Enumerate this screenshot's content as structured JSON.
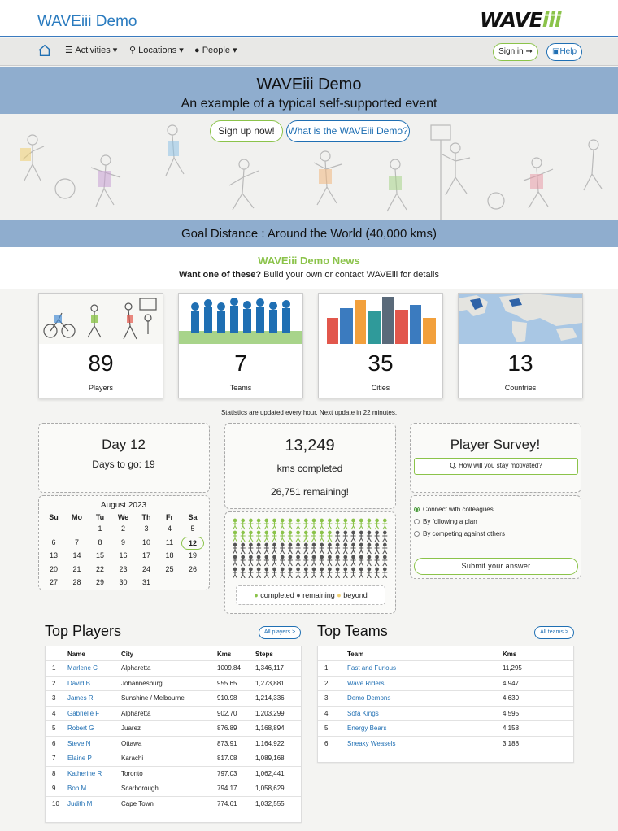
{
  "header": {
    "title": "WAVEiii Demo",
    "logo_main": "WAVE",
    "logo_accent": "iii"
  },
  "nav": {
    "home_icon": "home-icon",
    "items": [
      {
        "label": "Activities",
        "icon": "list-icon"
      },
      {
        "label": "Locations",
        "icon": "map-pin-icon"
      },
      {
        "label": "People",
        "icon": "person-icon"
      }
    ],
    "signin_label": "Sign in",
    "help_label": "Help"
  },
  "hero": {
    "title": "WAVEiii Demo",
    "subtitle": "An example of a typical self-supported event",
    "signup_label": "Sign up now!",
    "what_label": "What is the WAVEiii Demo?",
    "goal": "Goal Distance : Around the World (40,000 kms)"
  },
  "news": {
    "title": "WAVEiii Demo News",
    "bold": "Want one of these?",
    "text": " Build your own or contact WAVEiii for details"
  },
  "stats": [
    {
      "value": "89",
      "label": "Players"
    },
    {
      "value": "7",
      "label": "Teams"
    },
    {
      "value": "35",
      "label": "Cities"
    },
    {
      "value": "13",
      "label": "Countries"
    }
  ],
  "update_note": "Statistics are updated every hour. Next update in 22 minutes.",
  "day": {
    "title": "Day 12",
    "days_to_go": "Days to go: 19",
    "month": "August 2023",
    "weekdays": [
      "Su",
      "Mo",
      "Tu",
      "We",
      "Th",
      "Fr",
      "Sa"
    ],
    "weeks": [
      [
        "",
        "",
        "1",
        "2",
        "3",
        "4",
        "5"
      ],
      [
        "6",
        "7",
        "8",
        "9",
        "10",
        "11",
        "12"
      ],
      [
        "13",
        "14",
        "15",
        "16",
        "17",
        "18",
        "19"
      ],
      [
        "20",
        "21",
        "22",
        "23",
        "24",
        "25",
        "26"
      ],
      [
        "27",
        "28",
        "29",
        "30",
        "31",
        "",
        ""
      ]
    ],
    "today": "12"
  },
  "progress": {
    "kms": "13,249",
    "kms_label": "kms completed",
    "remaining": "26,751 remaining!",
    "completed_figures": 33,
    "total_figures": 100,
    "legend_completed": "completed",
    "legend_remaining": "remaining",
    "legend_beyond": "beyond",
    "color_completed": "#8bc34a",
    "color_remaining": "#555555"
  },
  "survey": {
    "title": "Player Survey!",
    "question": "Q. How will you stay motivated?",
    "options": [
      "Connect with colleagues",
      "By following a plan",
      "By competing against others"
    ],
    "selected": 0,
    "submit": "Submit your answer"
  },
  "top_players": {
    "title": "Top Players",
    "button": "All players >",
    "columns": [
      "Name",
      "City",
      "Kms",
      "Steps"
    ],
    "rows": [
      [
        "1",
        "Marlene C",
        "Alpharetta",
        "1009.84",
        "1,346,117"
      ],
      [
        "2",
        "David B",
        "Johannesburg",
        "955.65",
        "1,273,881"
      ],
      [
        "3",
        "James R",
        "Sunshine / Melbourne",
        "910.98",
        "1,214,336"
      ],
      [
        "4",
        "Gabrielle F",
        "Alpharetta",
        "902.70",
        "1,203,299"
      ],
      [
        "5",
        "Robert G",
        "Juarez",
        "876.89",
        "1,168,894"
      ],
      [
        "6",
        "Steve N",
        "Ottawa",
        "873.91",
        "1,164,922"
      ],
      [
        "7",
        "Elaine P",
        "Karachi",
        "817.08",
        "1,089,168"
      ],
      [
        "8",
        "Katherine R",
        "Toronto",
        "797.03",
        "1,062,441"
      ],
      [
        "9",
        "Bob M",
        "Scarborough",
        "794.17",
        "1,058,629"
      ],
      [
        "10",
        "Judith M",
        "Cape Town",
        "774.61",
        "1,032,555"
      ]
    ]
  },
  "top_teams": {
    "title": "Top Teams",
    "button": "All teams >",
    "columns": [
      "Team",
      "Kms"
    ],
    "rows": [
      [
        "1",
        "Fast and Furious",
        "11,295"
      ],
      [
        "2",
        "Wave Riders",
        "4,947"
      ],
      [
        "3",
        "Demo Demons",
        "4,630"
      ],
      [
        "4",
        "Sofa Kings",
        "4,595"
      ],
      [
        "5",
        "Energy Bears",
        "4,158"
      ],
      [
        "6",
        "Sneaky Weasels",
        "3,188"
      ]
    ]
  },
  "colors": {
    "brand_blue": "#1f6fb3",
    "brand_green": "#8bc34a"
  }
}
